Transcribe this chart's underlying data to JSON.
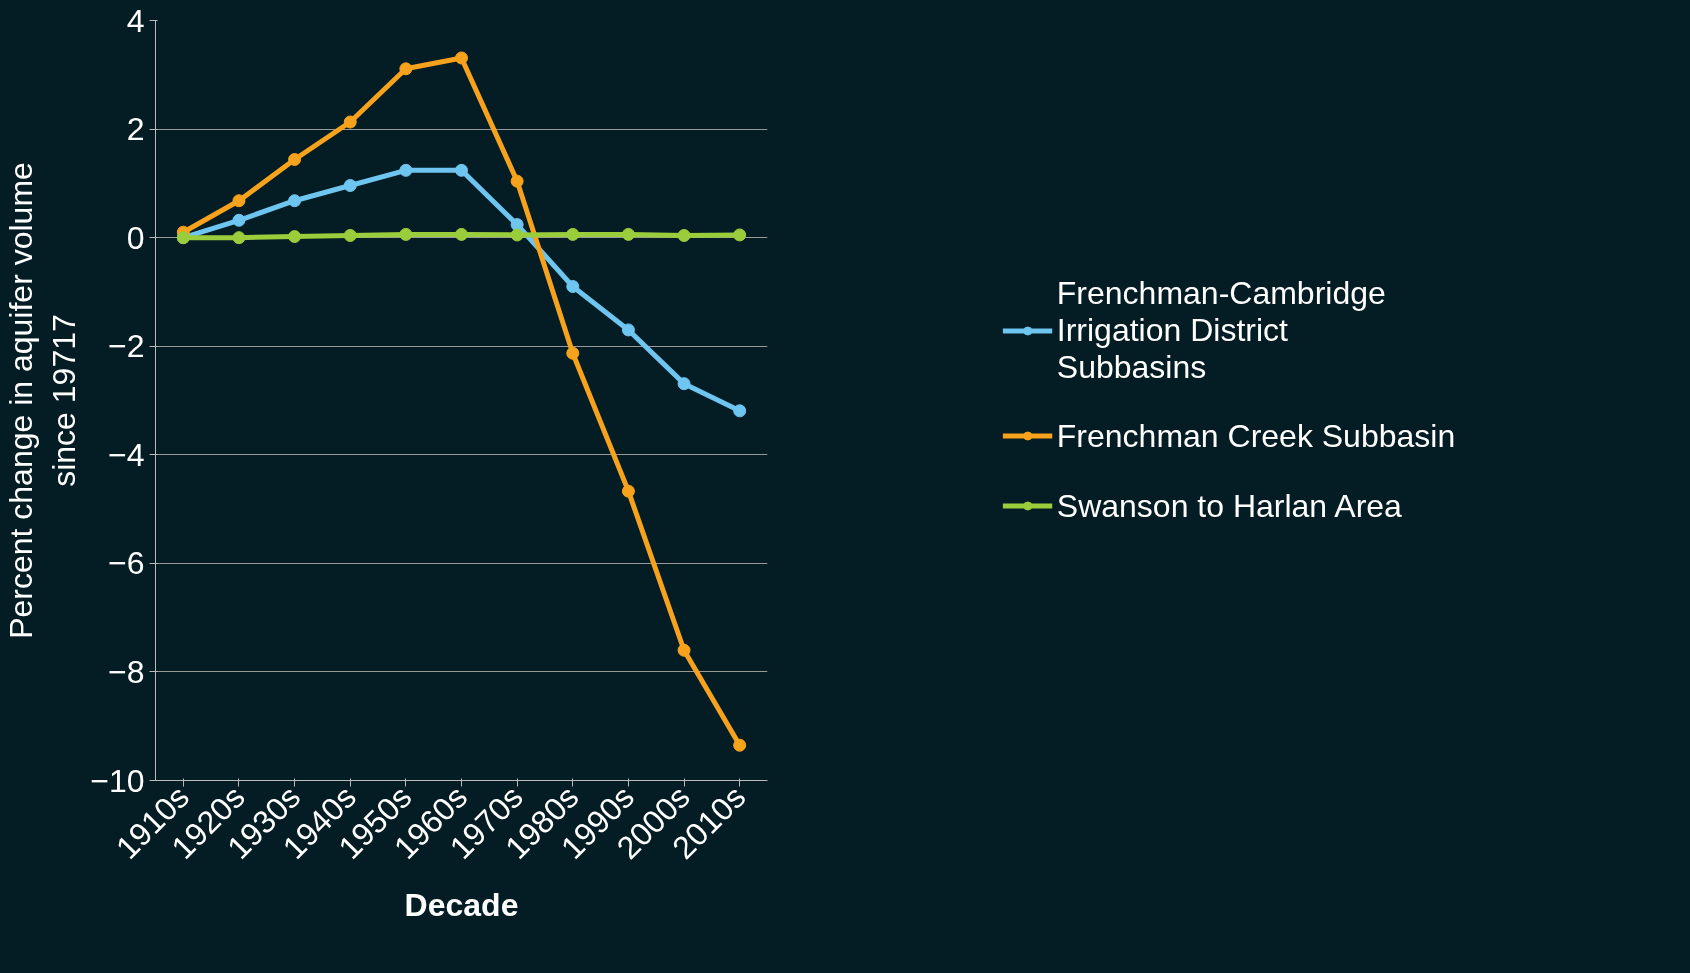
{
  "chart_data": {
    "type": "line",
    "xlabel": "Decade",
    "ylabel": "Percent change in aquifer volume since 19717",
    "categories": [
      "1910s",
      "1920s",
      "1930s",
      "1940s",
      "1950s",
      "1960s",
      "1970s",
      "1980s",
      "1990s",
      "2000s",
      "2010s"
    ],
    "series": [
      {
        "name": "Frenchman-Cambridge Irrigation District Subbasins",
        "color": "#6ec6f0",
        "values": [
          0,
          0.32,
          0.68,
          0.96,
          1.24,
          1.24,
          0.24,
          -0.9,
          -1.7,
          -2.69,
          -3.19
        ]
      },
      {
        "name": "Frenchman Creek Subbasin",
        "color": "#f7a21c",
        "values": [
          0.1,
          0.68,
          1.44,
          2.13,
          3.11,
          3.31,
          1.04,
          -2.13,
          -4.67,
          -7.6,
          -9.35
        ]
      },
      {
        "name": "Swanson to Harlan Area",
        "color": "#9acd3c",
        "values": [
          0,
          0,
          0.02,
          0.04,
          0.06,
          0.06,
          0.05,
          0.06,
          0.06,
          0.04,
          0.05
        ]
      }
    ],
    "ylim": [
      -10,
      4
    ],
    "yticks": [
      -10,
      -8,
      -6,
      -4,
      -2,
      0,
      2,
      4
    ],
    "grid": "y",
    "legend": "right",
    "marker": "circle",
    "line_style": "solid"
  }
}
